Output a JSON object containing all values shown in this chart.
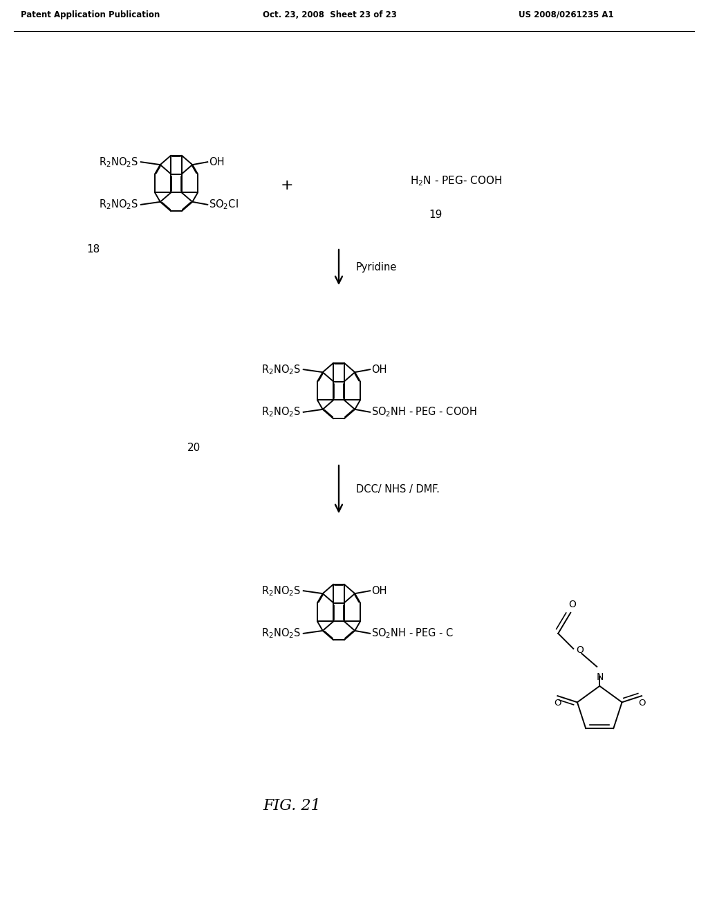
{
  "bg_color": "#ffffff",
  "header_left": "Patent Application Publication",
  "header_mid": "Oct. 23, 2008  Sheet 23 of 23",
  "header_right": "US 2008/0261235 A1",
  "fig_label": "FIG. 21",
  "compound18_label": "18",
  "compound19_label": "19",
  "compound20_label": "20",
  "reagent1": "Pyridine",
  "reagent2": "DCC/ NHS / DMF.",
  "text_color": "#000000"
}
